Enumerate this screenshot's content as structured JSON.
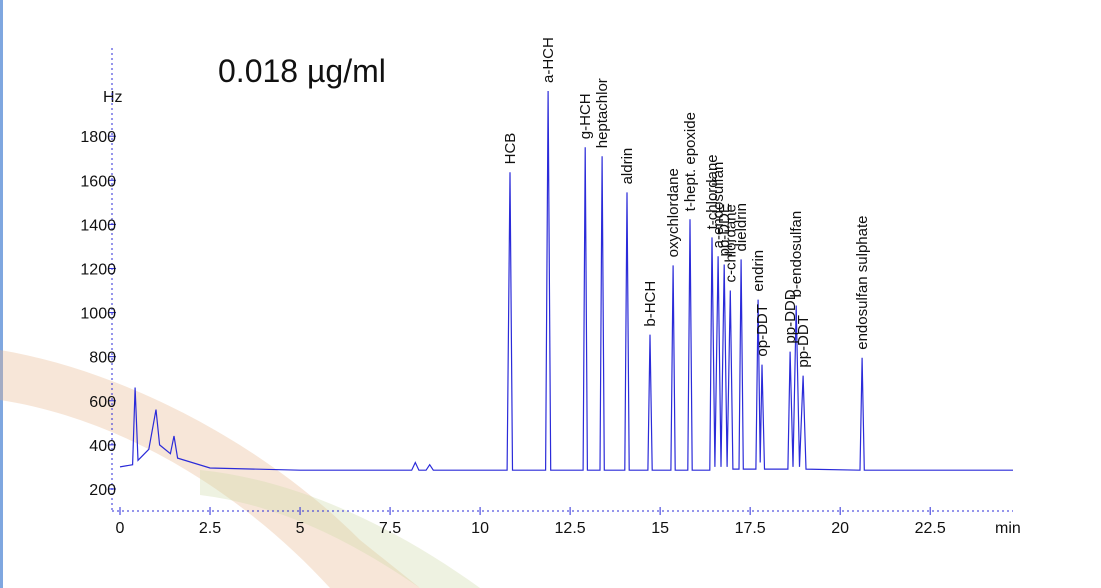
{
  "chart_data": {
    "type": "line",
    "title": "0.018 µg/ml",
    "x_label": "min",
    "y_label": "Hz",
    "xlim": [
      0,
      24.8
    ],
    "ylim": [
      100,
      2200
    ],
    "xticks": [
      0,
      2.5,
      5,
      7.5,
      10,
      12.5,
      15,
      17.5,
      20,
      22.5
    ],
    "yticks": [
      200,
      400,
      600,
      800,
      1000,
      1200,
      1400,
      1600,
      1800
    ],
    "series": [
      {
        "color": "#2b2bd9",
        "x": [
          0,
          0.35,
          0.42,
          0.5,
          0.8,
          1.0,
          1.1,
          1.4,
          1.5,
          1.6,
          2.5,
          5,
          8.1,
          8.2,
          8.3,
          8.5,
          8.6,
          8.7,
          10.75,
          10.83,
          10.9,
          11.82,
          11.89,
          11.96,
          12.86,
          12.92,
          12.98,
          13.33,
          13.39,
          13.45,
          14.02,
          14.08,
          14.14,
          14.66,
          14.72,
          14.78,
          15.3,
          15.36,
          15.42,
          15.77,
          15.83,
          15.89,
          16.38,
          16.44,
          16.52,
          16.61,
          16.69,
          16.78,
          16.86,
          16.95,
          17.02,
          17.19,
          17.25,
          17.31,
          17.66,
          17.72,
          17.78,
          17.83,
          17.9,
          18.55,
          18.61,
          18.69,
          18.78,
          18.87,
          18.97,
          19.05,
          20.55,
          20.61,
          20.67,
          24.8
        ],
        "values": [
          300,
          310,
          660,
          330,
          380,
          560,
          400,
          360,
          440,
          340,
          295,
          285,
          285,
          320,
          285,
          285,
          310,
          285,
          285,
          1636,
          285,
          285,
          2005,
          285,
          285,
          1750,
          285,
          285,
          1709,
          285,
          285,
          1545,
          285,
          285,
          900,
          285,
          285,
          1214,
          285,
          285,
          1423,
          285,
          285,
          1341,
          300,
          1255,
          300,
          1218,
          300,
          1100,
          290,
          290,
          1241,
          290,
          290,
          1059,
          320,
          764,
          290,
          290,
          823,
          300,
          1032,
          300,
          714,
          290,
          285,
          795,
          285,
          285
        ]
      }
    ],
    "annotations": [
      {
        "text": "HCB",
        "x": 10.83
      },
      {
        "text": "a-HCH",
        "x": 11.89
      },
      {
        "text": "g-HCH",
        "x": 12.92
      },
      {
        "text": "heptachlor",
        "x": 13.39
      },
      {
        "text": "aldrin",
        "x": 14.08
      },
      {
        "text": "b-HCH",
        "x": 14.72
      },
      {
        "text": "oxychlordane",
        "x": 15.36
      },
      {
        "text": "t-hept. epoxide",
        "x": 15.83
      },
      {
        "text": "t-chlordane",
        "x": 16.44
      },
      {
        "text": "a-endosulfan",
        "x": 16.61
      },
      {
        "text": "pp-DDE",
        "x": 16.78
      },
      {
        "text": "c-chlordane",
        "x": 16.95
      },
      {
        "text": "dieldrin",
        "x": 17.25
      },
      {
        "text": "endrin",
        "x": 17.72
      },
      {
        "text": "op-DDT",
        "x": 17.83
      },
      {
        "text": "pp-DDD",
        "x": 18.61
      },
      {
        "text": "b-endosulfan",
        "x": 18.78
      },
      {
        "text": "pp-DDT",
        "x": 18.97
      },
      {
        "text": "endosulfan sulphate",
        "x": 20.61
      }
    ]
  }
}
